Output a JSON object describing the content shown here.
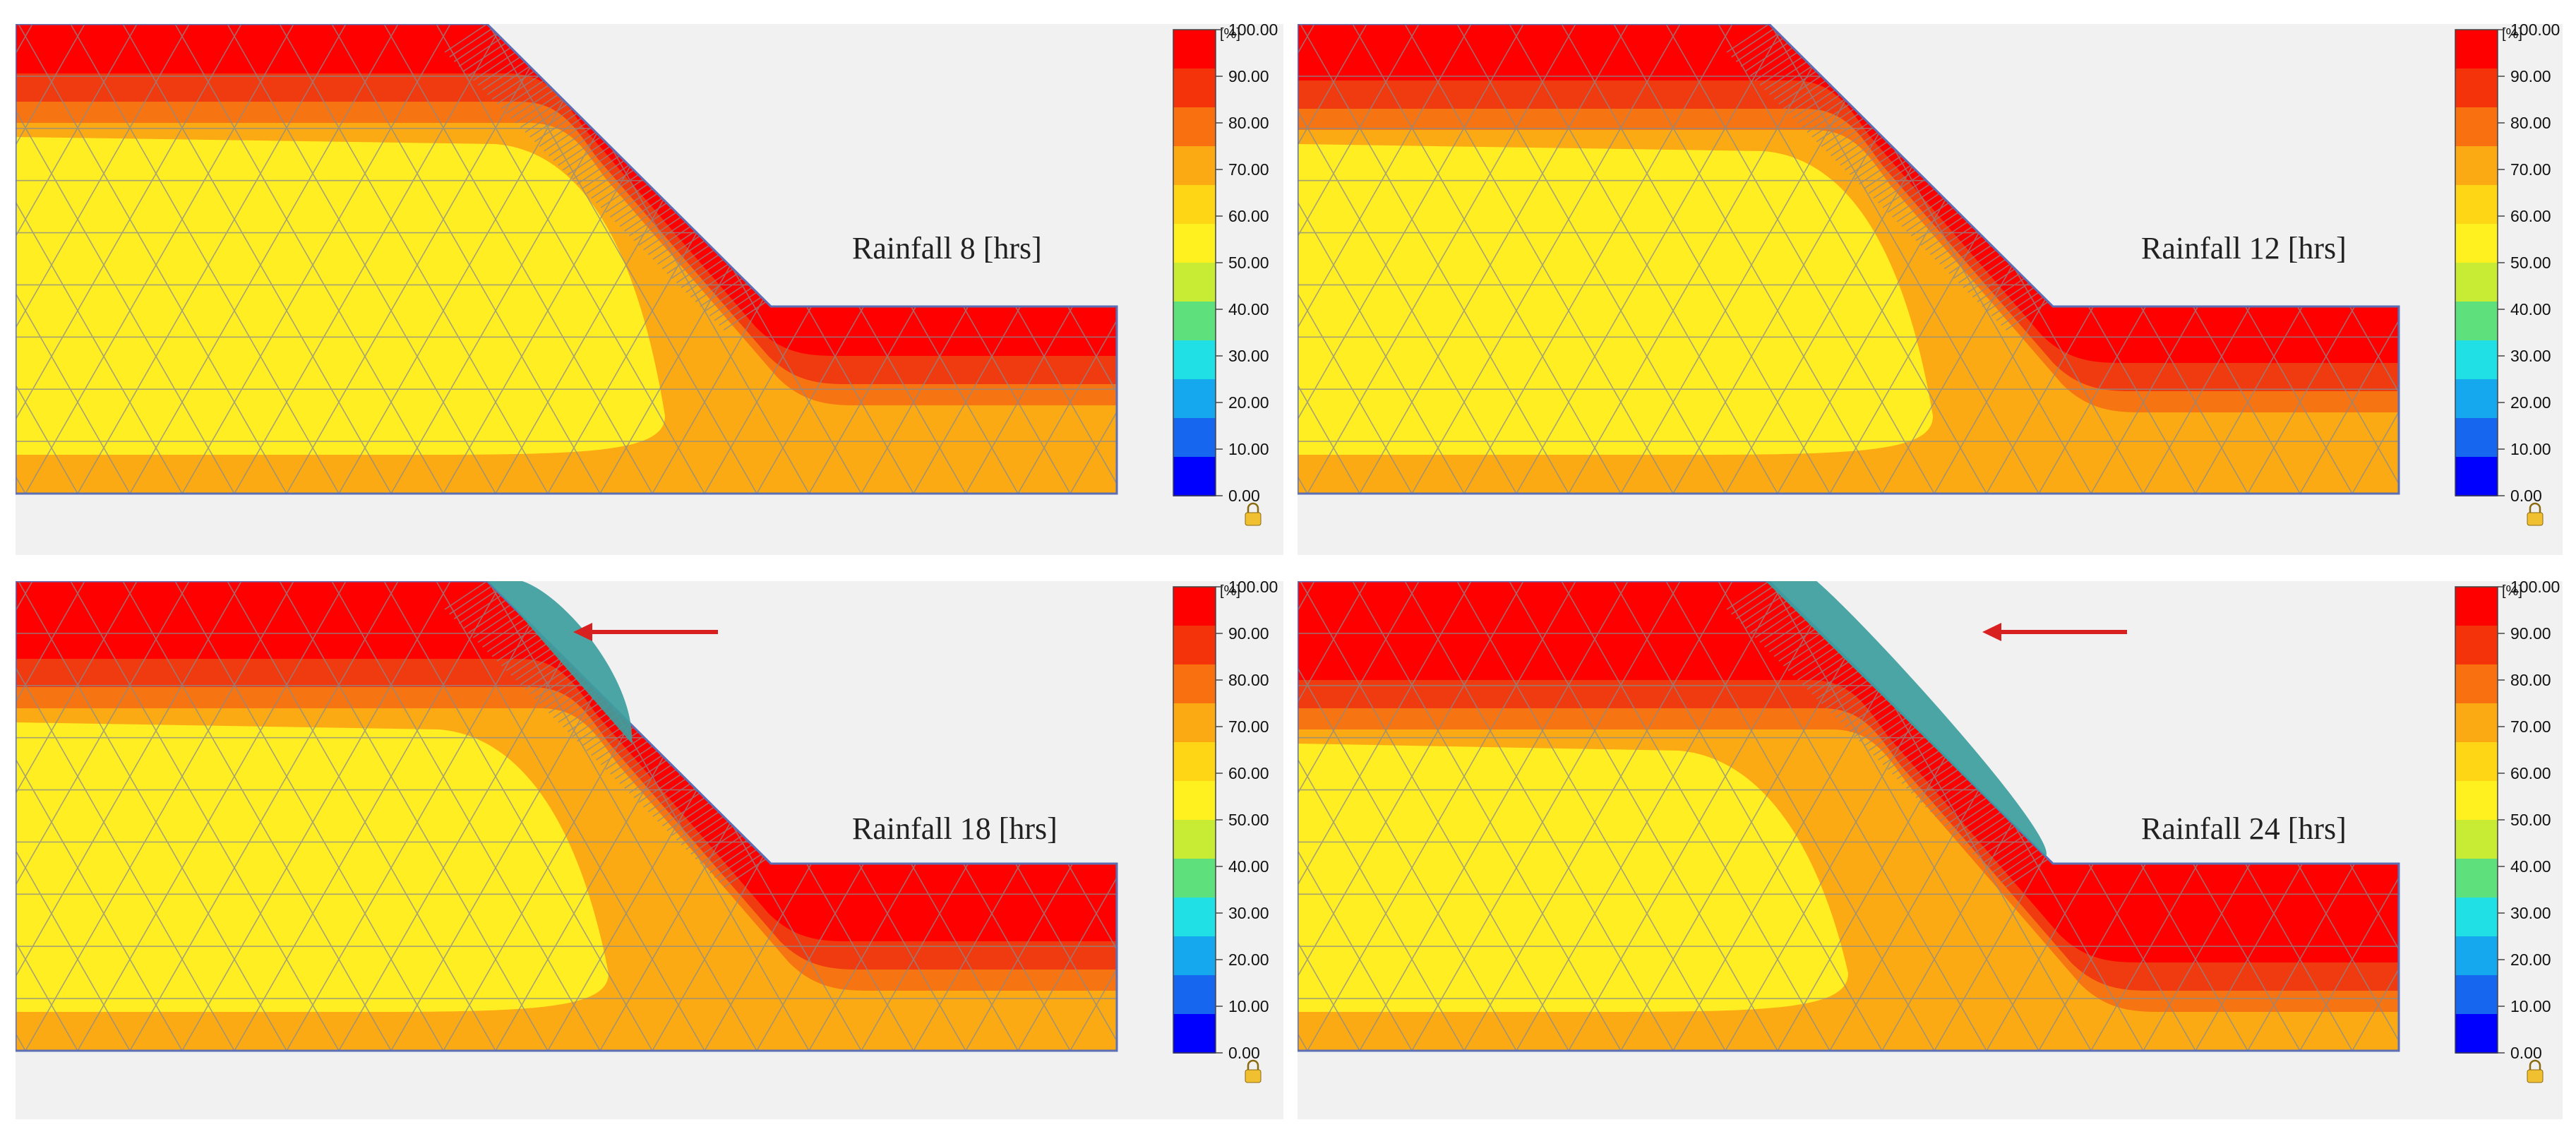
{
  "legend": {
    "unit": "[%]",
    "ticks": [
      "100.00",
      "90.00",
      "80.00",
      "70.00",
      "60.00",
      "50.00",
      "40.00",
      "30.00",
      "20.00",
      "10.00",
      "0.00"
    ],
    "colors": [
      "#ff0000",
      "#f4330a",
      "#f87010",
      "#fbaa14",
      "#ffd616",
      "#fff020",
      "#c8ec34",
      "#5ee07c",
      "#20e0e6",
      "#16a8ee",
      "#1666f0",
      "#0000ff"
    ],
    "lock_icon": "lock-icon"
  },
  "panels": [
    {
      "label": "Rainfall 8 [hrs]",
      "failure": false
    },
    {
      "label": "Rainfall 12 [hrs]",
      "failure": false
    },
    {
      "label": "Rainfall 18 [hrs]",
      "failure": true,
      "arrow_icon": "arrow-left-icon"
    },
    {
      "label": "Rainfall 24 [hrs]",
      "failure": true,
      "arrow_icon": "arrow-left-icon"
    }
  ],
  "colors": {
    "saturated": "#ff0000",
    "band_1": "#f03a10",
    "band_2": "#f77412",
    "band_3": "#fbaa14",
    "core": "#ffee22",
    "mesh": "#8a8a8a",
    "outline": "#5c6fb4",
    "failure_mass": "#3d9e9e",
    "arrow": "#d92020"
  }
}
